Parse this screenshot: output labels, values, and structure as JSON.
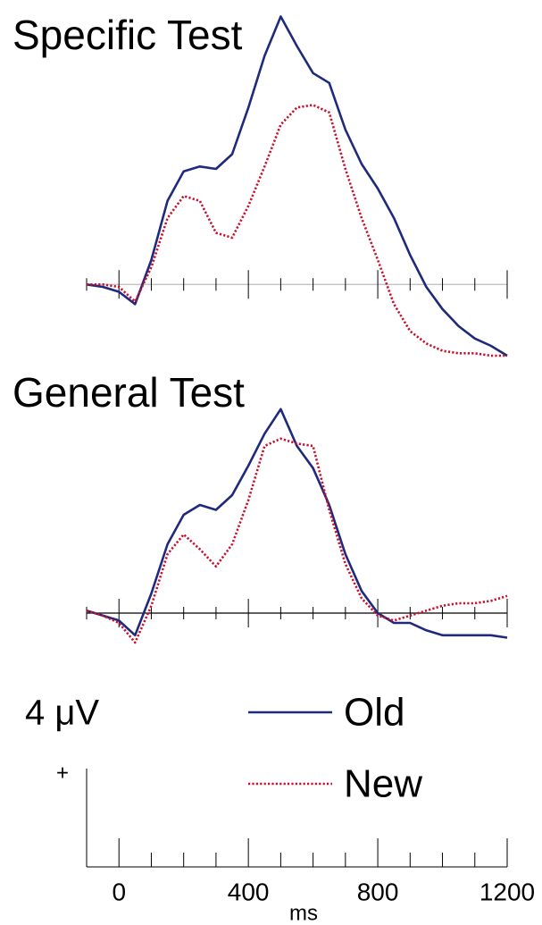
{
  "chart_data": [
    {
      "type": "line",
      "title": "Specific Test",
      "x": [
        -100,
        -50,
        0,
        50,
        100,
        150,
        200,
        250,
        300,
        350,
        400,
        450,
        500,
        550,
        600,
        650,
        700,
        750,
        800,
        850,
        900,
        950,
        1000,
        1050,
        1100,
        1150,
        1200
      ],
      "series": [
        {
          "name": "Old",
          "color": "#1f2a7a",
          "style": "solid",
          "values": [
            0,
            -0.1,
            -0.3,
            -0.8,
            1.0,
            3.4,
            4.6,
            4.8,
            4.7,
            5.3,
            7.2,
            9.3,
            10.9,
            9.7,
            8.6,
            8.2,
            6.3,
            4.9,
            3.9,
            2.7,
            1.2,
            -0.1,
            -1.0,
            -1.7,
            -2.2,
            -2.5,
            -2.9
          ]
        },
        {
          "name": "New",
          "color": "#c8102e",
          "style": "dotted",
          "values": [
            0,
            0,
            -0.1,
            -0.7,
            0.7,
            2.7,
            3.6,
            3.4,
            2.1,
            1.9,
            3.2,
            4.8,
            6.5,
            7.2,
            7.3,
            7.0,
            4.7,
            2.7,
            1.0,
            -0.8,
            -1.9,
            -2.4,
            -2.7,
            -2.8,
            -2.8,
            -2.9,
            -2.9
          ]
        }
      ],
      "xlim": [
        -100,
        1200
      ],
      "ylim": [
        -3,
        11.5
      ],
      "axis_color": "#bbbbbb"
    },
    {
      "type": "line",
      "title": "General Test",
      "x": [
        -100,
        -50,
        0,
        50,
        100,
        150,
        200,
        250,
        300,
        350,
        400,
        450,
        500,
        550,
        600,
        650,
        700,
        750,
        800,
        850,
        900,
        950,
        1000,
        1050,
        1100,
        1150,
        1200
      ],
      "series": [
        {
          "name": "Old",
          "color": "#1f2a7a",
          "style": "solid",
          "values": [
            0.1,
            -0.1,
            -0.3,
            -0.9,
            0.8,
            2.8,
            4.0,
            4.4,
            4.2,
            4.8,
            6.0,
            7.3,
            8.3,
            6.8,
            5.9,
            4.4,
            2.4,
            0.9,
            0.0,
            -0.4,
            -0.4,
            -0.7,
            -0.9,
            -0.9,
            -0.9,
            -0.9,
            -1.0
          ]
        },
        {
          "name": "New",
          "color": "#c8102e",
          "style": "dotted",
          "values": [
            0.1,
            -0.1,
            -0.4,
            -1.2,
            0.3,
            2.4,
            3.2,
            2.6,
            1.9,
            2.8,
            4.6,
            6.8,
            7.1,
            6.9,
            6.8,
            4.2,
            2.0,
            0.6,
            -0.1,
            -0.3,
            -0.1,
            0.1,
            0.3,
            0.4,
            0.4,
            0.5,
            0.7
          ]
        }
      ],
      "xlim": [
        -100,
        1200
      ],
      "ylim": [
        -2,
        9
      ],
      "axis_color": "#000000"
    }
  ],
  "axis": {
    "xlabel": "ms",
    "xlim": [
      -100,
      1200
    ],
    "xticks": [
      0,
      400,
      800,
      1200
    ],
    "minor_xticks": [
      -100,
      100,
      200,
      300,
      500,
      600,
      700,
      900,
      1000,
      1100
    ]
  },
  "scale_bar": {
    "label": "4 μV",
    "value": 4,
    "sign": "+"
  }
}
